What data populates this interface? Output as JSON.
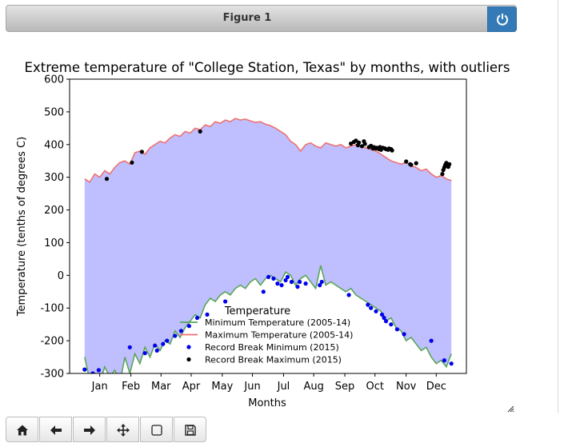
{
  "window": {
    "title": "Figure 1",
    "power_icon": "power-icon"
  },
  "toolbar": {
    "buttons": [
      {
        "icon": "home-icon",
        "label": ""
      },
      {
        "icon": "back-arrow-icon",
        "label": ""
      },
      {
        "icon": "forward-arrow-icon",
        "label": ""
      },
      {
        "icon": "move-icon",
        "label": ""
      },
      {
        "icon": "zoom-rect-icon",
        "label": ""
      },
      {
        "icon": "save-icon",
        "label": ""
      }
    ]
  },
  "chart_data": {
    "type": "line",
    "title": "Extreme temperature of \"College Station, Texas\" by months, with outliers",
    "xlabel": "Months",
    "ylabel": "Temperature (tenths of degrees C)",
    "ylim": [
      -300,
      600
    ],
    "xlim": [
      -15,
      380
    ],
    "yticks": [
      -300,
      -200,
      -100,
      0,
      100,
      200,
      300,
      400,
      500,
      600
    ],
    "xticks": [
      {
        "label": "Jan",
        "day": 15
      },
      {
        "label": "Feb",
        "day": 46
      },
      {
        "label": "Mar",
        "day": 76
      },
      {
        "label": "Apr",
        "day": 106
      },
      {
        "label": "May",
        "day": 137
      },
      {
        "label": "Jun",
        "day": 167
      },
      {
        "label": "Jul",
        "day": 198
      },
      {
        "label": "Aug",
        "day": 228
      },
      {
        "label": "Sep",
        "day": 259
      },
      {
        "label": "Oct",
        "day": 289
      },
      {
        "label": "Nov",
        "day": 320
      },
      {
        "label": "Dec",
        "day": 350
      }
    ],
    "grid": false,
    "legend": {
      "title": "Temperature",
      "placement": "lower-center"
    },
    "fill_color": "#bfbfff",
    "series": [
      {
        "name": "Minimum Temperature (2005-14)",
        "kind": "line",
        "color": "#5aa55a",
        "x": [
          0,
          5,
          10,
          15,
          20,
          25,
          30,
          35,
          40,
          45,
          50,
          55,
          60,
          65,
          70,
          75,
          80,
          85,
          90,
          95,
          100,
          105,
          110,
          115,
          120,
          125,
          130,
          135,
          140,
          145,
          150,
          155,
          160,
          165,
          170,
          175,
          180,
          185,
          190,
          195,
          200,
          205,
          210,
          215,
          220,
          225,
          230,
          235,
          240,
          245,
          250,
          255,
          260,
          265,
          270,
          275,
          280,
          285,
          290,
          295,
          300,
          305,
          310,
          315,
          320,
          325,
          330,
          335,
          340,
          345,
          350,
          355,
          360,
          365
        ],
        "y": [
          -250,
          -320,
          -300,
          -330,
          -280,
          -310,
          -290,
          -330,
          -250,
          -300,
          -240,
          -270,
          -220,
          -250,
          -210,
          -230,
          -200,
          -210,
          -170,
          -190,
          -160,
          -140,
          -120,
          -130,
          -90,
          -70,
          -80,
          -60,
          -50,
          -60,
          -40,
          -30,
          -40,
          -20,
          -10,
          -30,
          -10,
          0,
          -10,
          -20,
          10,
          0,
          -30,
          -10,
          0,
          -20,
          -40,
          30,
          -30,
          -20,
          -30,
          -40,
          -50,
          -40,
          -60,
          -70,
          -80,
          -90,
          -100,
          -110,
          -140,
          -130,
          -160,
          -170,
          -200,
          -190,
          -210,
          -230,
          -220,
          -250,
          -270,
          -260,
          -280,
          -240
        ]
      },
      {
        "name": "Maximum Temperature (2005-14)",
        "kind": "line",
        "color": "#f07070",
        "x": [
          0,
          5,
          10,
          15,
          20,
          25,
          30,
          35,
          40,
          45,
          50,
          55,
          60,
          65,
          70,
          75,
          80,
          85,
          90,
          95,
          100,
          105,
          110,
          115,
          120,
          125,
          130,
          135,
          140,
          145,
          150,
          155,
          160,
          165,
          170,
          175,
          180,
          185,
          190,
          195,
          200,
          205,
          210,
          215,
          220,
          225,
          230,
          235,
          240,
          245,
          250,
          255,
          260,
          265,
          270,
          275,
          280,
          285,
          290,
          295,
          300,
          305,
          310,
          315,
          320,
          325,
          330,
          335,
          340,
          345,
          350,
          355,
          360,
          365
        ],
        "y": [
          295,
          285,
          310,
          300,
          320,
          310,
          330,
          345,
          350,
          340,
          375,
          380,
          370,
          390,
          400,
          410,
          405,
          420,
          430,
          425,
          440,
          435,
          450,
          445,
          460,
          455,
          470,
          465,
          475,
          470,
          480,
          475,
          478,
          472,
          468,
          470,
          462,
          458,
          450,
          440,
          430,
          410,
          400,
          380,
          400,
          405,
          395,
          390,
          405,
          400,
          395,
          400,
          390,
          395,
          400,
          395,
          390,
          385,
          380,
          370,
          360,
          350,
          345,
          340,
          345,
          335,
          330,
          320,
          325,
          310,
          300,
          305,
          295,
          290
        ]
      },
      {
        "name": "Record Break Minimum (2015)",
        "kind": "scatter",
        "color": "#0000ee",
        "x": [
          0,
          8,
          14,
          45,
          60,
          70,
          72,
          78,
          82,
          90,
          96,
          104,
          112,
          122,
          140,
          178,
          183,
          188,
          192,
          196,
          200,
          202,
          206,
          212,
          214,
          220,
          234,
          236,
          263,
          282,
          285,
          290,
          296,
          298,
          300,
          305,
          311,
          318,
          345,
          358,
          365
        ],
        "y": [
          -288,
          -300,
          -290,
          -220,
          -238,
          -215,
          -230,
          -210,
          -200,
          -185,
          -170,
          -155,
          -130,
          -120,
          -80,
          -50,
          -5,
          -10,
          -25,
          -30,
          -15,
          -5,
          -20,
          -35,
          -20,
          -25,
          -30,
          -20,
          -60,
          -90,
          -100,
          -110,
          -120,
          -130,
          -140,
          -150,
          -165,
          -180,
          -200,
          -260,
          -270
        ]
      },
      {
        "name": "Record Break Maximum (2015)",
        "kind": "scatter",
        "color": "#000000",
        "x": [
          22,
          47,
          57,
          115,
          265,
          268,
          270,
          272,
          273,
          276,
          278,
          279,
          283,
          285,
          287,
          288,
          290,
          291,
          293,
          294,
          295,
          297,
          299,
          300,
          302,
          303,
          305,
          306,
          320,
          324,
          325,
          330,
          356,
          357,
          358,
          359,
          360,
          361,
          362,
          363
        ],
        "y": [
          295,
          345,
          378,
          440,
          403,
          408,
          412,
          398,
          406,
          395,
          410,
          402,
          392,
          396,
          388,
          392,
          388,
          390,
          386,
          392,
          384,
          390,
          388,
          386,
          384,
          388,
          386,
          382,
          348,
          340,
          338,
          343,
          310,
          322,
          330,
          338,
          344,
          336,
          332,
          340
        ]
      }
    ]
  }
}
